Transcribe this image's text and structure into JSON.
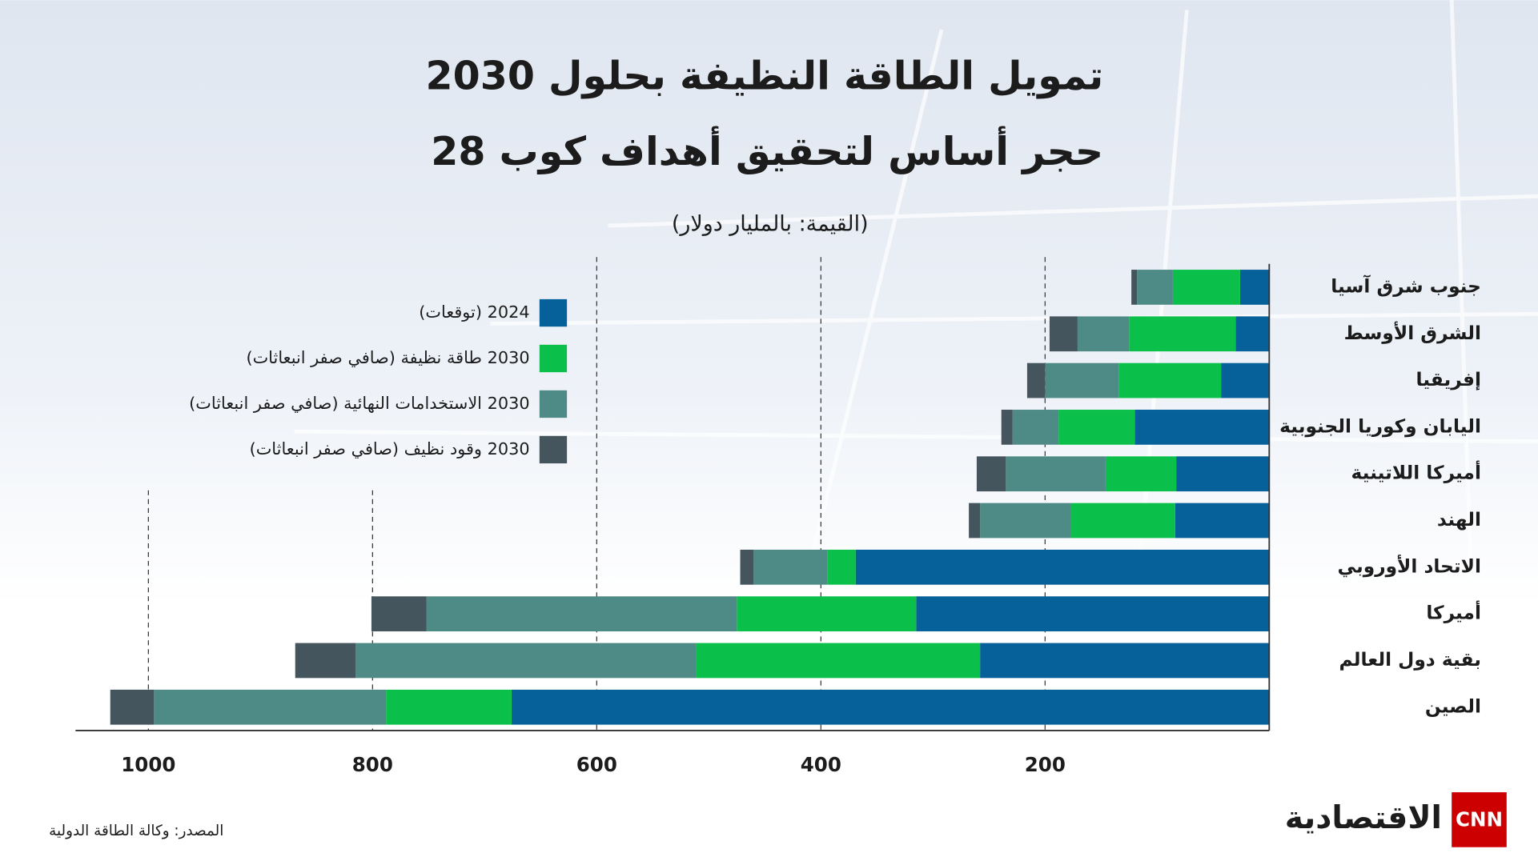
{
  "chart_data": {
    "type": "bar",
    "orientation": "horizontal",
    "stacked": true,
    "x_reversed": true,
    "title": [
      "تمويل الطاقة النظيفة بحلول 2030",
      "حجر أساس لتحقيق أهداف كوب 28"
    ],
    "unit_label": "(القيمة: بالمليار دولار)",
    "categories": [
      "جنوب شرق آسيا",
      "الشرق الأوسط",
      "إفريقيا",
      "اليابان وكوريا الجنوبية",
      "أميركا اللاتينية",
      "الهند",
      "الاتحاد الأوروبي",
      "أميركا",
      "بقية دول العالم",
      "الصين"
    ],
    "series": [
      {
        "name": "2024 (توقعات)",
        "color": "#06609a",
        "values": [
          26,
          30,
          43,
          120,
          83,
          84,
          369,
          315,
          258,
          676
        ]
      },
      {
        "name": "2030 طاقة نظيفة (صافي صفر انبعاثات)",
        "color": "#0bc04a",
        "values": [
          60,
          95,
          91,
          68,
          63,
          93,
          25,
          160,
          253,
          112
        ]
      },
      {
        "name": "2030 الاستخدامات النهائية (صافي صفر انبعاثات)",
        "color": "#4f8b86",
        "values": [
          32,
          46,
          66,
          41,
          89,
          81,
          66,
          277,
          304,
          207
        ]
      },
      {
        "name": "2030 وقود نظيف (صافي صفر انبعاثات)",
        "color": "#45555e",
        "values": [
          5,
          25,
          16,
          10,
          26,
          10,
          12,
          49,
          54,
          39
        ]
      }
    ],
    "xlim": [
      0,
      1065
    ],
    "xticks": [
      200,
      400,
      600,
      800,
      1000
    ],
    "grid": true
  },
  "source": "المصدر: وكالة الطاقة الدولية",
  "logo": {
    "brand": "CNN",
    "name": "الاقتصادية"
  }
}
